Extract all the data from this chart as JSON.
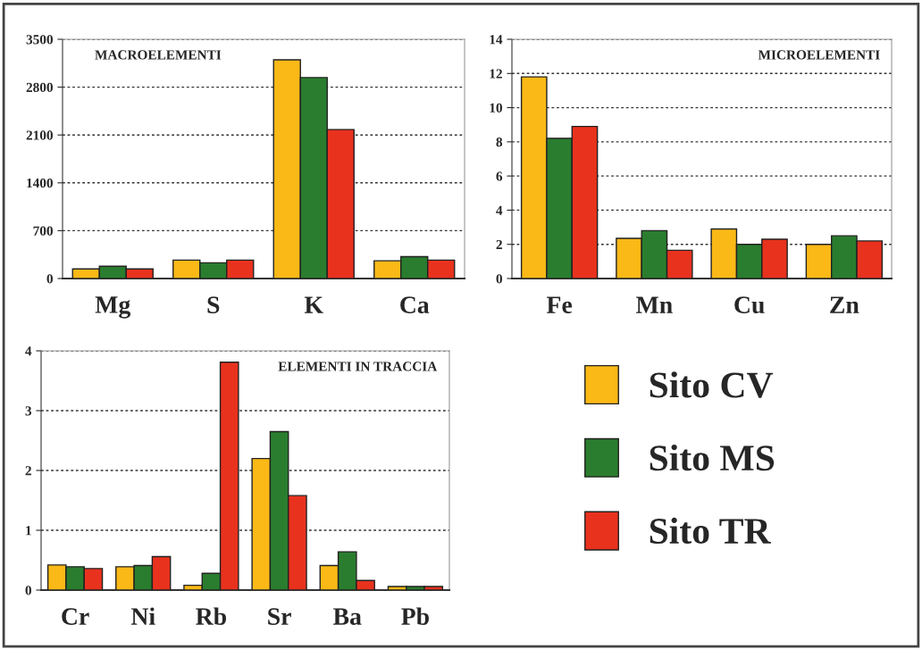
{
  "chart_data": [
    {
      "type": "bar",
      "annotations": [
        "MACROELEMENTI"
      ],
      "categories": [
        "Mg",
        "S",
        "K",
        "Ca"
      ],
      "ylim": [
        0,
        3500
      ],
      "yticks": [
        0,
        700,
        1400,
        2100,
        2800,
        3500
      ],
      "grid": "y",
      "legend": false,
      "series": [
        {
          "color": "#fbb917",
          "values": [
            140,
            270,
            3200,
            260
          ]
        },
        {
          "color": "#2a7d2e",
          "values": [
            180,
            230,
            2940,
            320
          ]
        },
        {
          "color": "#e8321e",
          "values": [
            140,
            270,
            2180,
            270
          ]
        }
      ]
    },
    {
      "type": "bar",
      "annotations": [
        "MICROELEMENTI"
      ],
      "categories": [
        "Fe",
        "Mn",
        "Cu",
        "Zn"
      ],
      "ylim": [
        0,
        14
      ],
      "yticks": [
        0,
        2,
        4,
        6,
        8,
        10,
        12,
        14
      ],
      "grid": "y",
      "legend": false,
      "series": [
        {
          "color": "#fbb917",
          "values": [
            11.8,
            2.35,
            2.9,
            2.0
          ]
        },
        {
          "color": "#2a7d2e",
          "values": [
            8.2,
            2.8,
            2.0,
            2.5
          ]
        },
        {
          "color": "#e8321e",
          "values": [
            8.9,
            1.65,
            2.3,
            2.2
          ]
        }
      ]
    },
    {
      "type": "bar",
      "annotations": [
        "ELEMENTI IN TRACCIA"
      ],
      "categories": [
        "Cr",
        "Ni",
        "Rb",
        "Sr",
        "Ba",
        "Pb"
      ],
      "ylim": [
        0,
        4
      ],
      "yticks": [
        0,
        1,
        2,
        3,
        4
      ],
      "grid": "y",
      "legend": "right",
      "series": [
        {
          "name": "Sito CV",
          "color": "#fbb917",
          "values": [
            0.42,
            0.39,
            0.08,
            2.2,
            0.41,
            0.06
          ]
        },
        {
          "name": "Sito MS",
          "color": "#2a7d2e",
          "values": [
            0.39,
            0.41,
            0.28,
            2.65,
            0.64,
            0.06
          ]
        },
        {
          "name": "Sito TR",
          "color": "#e8321e",
          "values": [
            0.36,
            0.56,
            3.81,
            1.58,
            0.16,
            0.06
          ]
        }
      ]
    }
  ]
}
